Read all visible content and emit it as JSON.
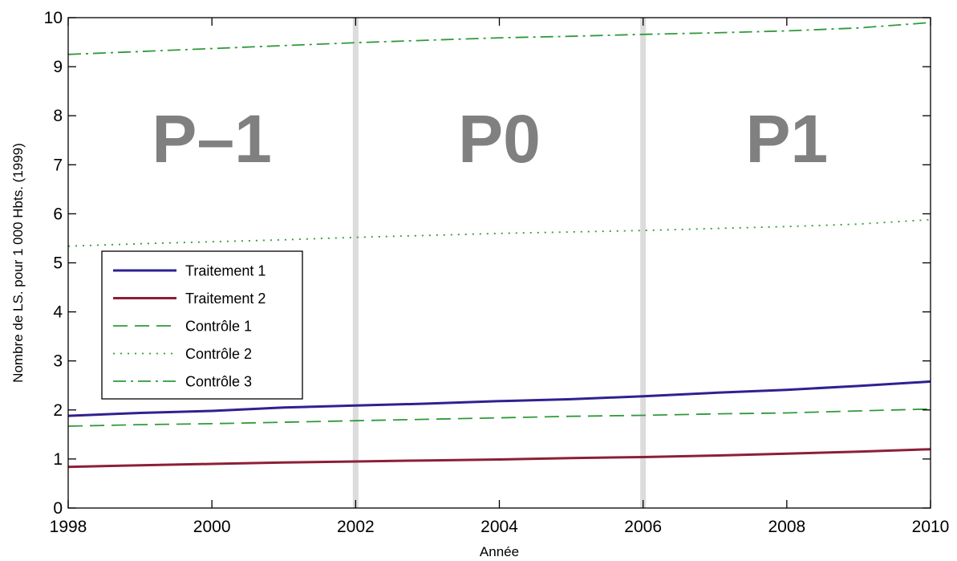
{
  "chart_data": {
    "type": "line",
    "title": "",
    "xlabel": "Année",
    "ylabel": "Nombre de LS. pour 1 000 Hbts. (1999)",
    "xlim": [
      1998,
      2010
    ],
    "ylim": [
      0,
      10
    ],
    "x_ticks": [
      1998,
      2000,
      2002,
      2004,
      2006,
      2008,
      2010
    ],
    "y_ticks": [
      0,
      1,
      2,
      3,
      4,
      5,
      6,
      7,
      8,
      9,
      10
    ],
    "grid": false,
    "legend_position": "center-left",
    "period_dividers": [
      2002,
      2006
    ],
    "periods": [
      {
        "label": "P–1",
        "from": 1998,
        "to": 2002
      },
      {
        "label": "P0",
        "from": 2002,
        "to": 2006
      },
      {
        "label": "P1",
        "from": 2006,
        "to": 2010
      }
    ],
    "x": [
      1998,
      1999,
      2000,
      2001,
      2002,
      2003,
      2004,
      2005,
      2006,
      2007,
      2008,
      2009,
      2010
    ],
    "series": [
      {
        "name": "Traitement 1",
        "color": "#2e2191",
        "style": "solid",
        "values": [
          1.88,
          1.94,
          1.98,
          2.05,
          2.09,
          2.13,
          2.18,
          2.22,
          2.28,
          2.35,
          2.41,
          2.49,
          2.58
        ]
      },
      {
        "name": "Traitement 2",
        "color": "#8c1f37",
        "style": "solid",
        "values": [
          0.84,
          0.87,
          0.9,
          0.93,
          0.95,
          0.97,
          0.99,
          1.02,
          1.04,
          1.07,
          1.11,
          1.15,
          1.2
        ]
      },
      {
        "name": "Contrôle 1",
        "color": "#2f9a3a",
        "style": "dashed",
        "values": [
          1.67,
          1.7,
          1.72,
          1.75,
          1.78,
          1.81,
          1.84,
          1.87,
          1.89,
          1.92,
          1.94,
          1.98,
          2.02
        ]
      },
      {
        "name": "Contrôle 2",
        "color": "#2f9a3a",
        "style": "dotted",
        "values": [
          5.34,
          5.39,
          5.43,
          5.47,
          5.52,
          5.56,
          5.6,
          5.63,
          5.66,
          5.7,
          5.74,
          5.79,
          5.88
        ]
      },
      {
        "name": "Contrôle 3",
        "color": "#2f9a3a",
        "style": "dashdot",
        "values": [
          9.25,
          9.31,
          9.37,
          9.43,
          9.49,
          9.54,
          9.59,
          9.62,
          9.66,
          9.69,
          9.73,
          9.79,
          9.9
        ]
      }
    ]
  }
}
